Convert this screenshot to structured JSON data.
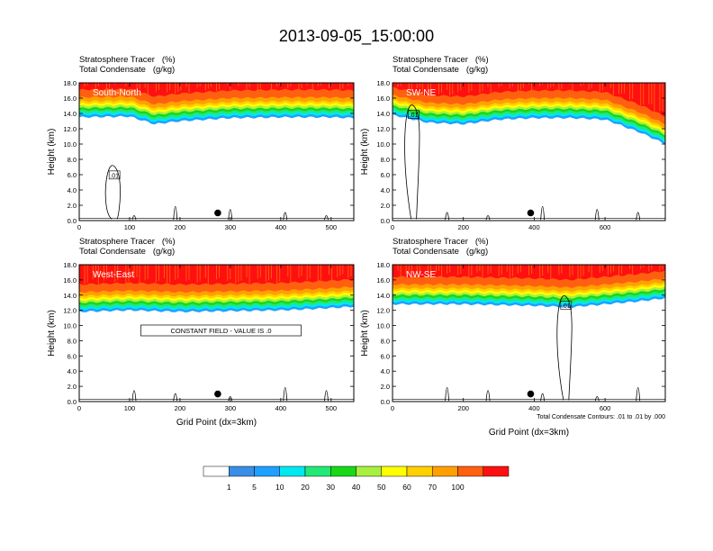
{
  "title": "2013-09-05_15:00:00",
  "panel_header_line1": "Stratosphere Tracer   (%)",
  "panel_header_line2": "Total Condensate   (g/kg)",
  "colorbar": {
    "levels": [
      "1",
      "5",
      "10",
      "20",
      "30",
      "40",
      "50",
      "60",
      "70",
      "100"
    ],
    "colors": [
      "#ffffff",
      "#3a8ee6",
      "#1ea0ff",
      "#00e8f0",
      "#22e878",
      "#18d818",
      "#a8f040",
      "#ffff00",
      "#ffd000",
      "#ffa000",
      "#ff6010",
      "#ff1010"
    ]
  },
  "chart_data": [
    {
      "type": "heatmap",
      "name": "South-North",
      "ylabel": "Height (km)",
      "xlabel": "",
      "xlim": [
        0,
        545
      ],
      "ylim": [
        0,
        18
      ],
      "xticks": [
        "0",
        "100",
        "200",
        "300",
        "400",
        "500"
      ],
      "yticks": [
        "0.0",
        "2.0",
        "4.0",
        "6.0",
        "8.0",
        "10.0",
        "12.0",
        "14.0",
        "16.0",
        "18.0"
      ],
      "contour_label": ".01",
      "marker": {
        "x": 275,
        "y": 1.0
      },
      "tropopause_x": [
        0,
        100,
        150,
        200,
        300,
        400,
        500,
        545
      ],
      "tropopause_km": [
        13.5,
        13.6,
        12.6,
        13.0,
        13.4,
        13.5,
        13.5,
        13.4
      ]
    },
    {
      "type": "heatmap",
      "name": "SW-NE",
      "ylabel": "Height (km)",
      "xlabel": "",
      "xlim": [
        0,
        770
      ],
      "ylim": [
        0,
        18
      ],
      "xticks": [
        "0",
        "200",
        "400",
        "600"
      ],
      "yticks": [
        "0.0",
        "2.0",
        "4.0",
        "6.0",
        "8.0",
        "10.0",
        "12.0",
        "14.0",
        "16.0",
        "18.0"
      ],
      "contour_label": ".01",
      "marker": {
        "x": 390,
        "y": 1.0
      },
      "tropopause_x": [
        0,
        100,
        200,
        300,
        400,
        500,
        600,
        700,
        770
      ],
      "tropopause_km": [
        13.8,
        12.8,
        12.6,
        13.2,
        13.4,
        13.4,
        13.2,
        11.5,
        10.0
      ]
    },
    {
      "type": "heatmap",
      "name": "West-East",
      "ylabel": "Height (km)",
      "xlabel": "Grid Point (dx=3km)",
      "xlim": [
        0,
        545
      ],
      "ylim": [
        0,
        18
      ],
      "xticks": [
        "0",
        "100",
        "200",
        "300",
        "400",
        "500"
      ],
      "yticks": [
        "0.0",
        "2.0",
        "4.0",
        "6.0",
        "8.0",
        "10.0",
        "12.0",
        "14.0",
        "16.0",
        "18.0"
      ],
      "annotation": "CONSTANT FIELD - VALUE IS .0",
      "marker": {
        "x": 275,
        "y": 1.0
      },
      "tropopause_x": [
        0,
        100,
        200,
        300,
        400,
        500,
        545
      ],
      "tropopause_km": [
        11.8,
        12.0,
        11.8,
        11.9,
        12.0,
        12.3,
        12.5
      ]
    },
    {
      "type": "heatmap",
      "name": "NW-SE",
      "ylabel": "Height (km)",
      "xlabel": "Grid Point (dx=3km)",
      "xlim": [
        0,
        770
      ],
      "ylim": [
        0,
        18
      ],
      "xticks": [
        "0",
        "200",
        "400",
        "600"
      ],
      "yticks": [
        "0.0",
        "2.0",
        "4.0",
        "6.0",
        "8.0",
        "10.0",
        "12.0",
        "14.0",
        "16.0",
        "18.0"
      ],
      "contour_label": ".01",
      "footnote": "Total Condensate Contours: .01 to .01 by .000",
      "marker": {
        "x": 390,
        "y": 1.0
      },
      "tropopause_x": [
        0,
        200,
        400,
        500,
        600,
        700,
        770
      ],
      "tropopause_km": [
        12.8,
        12.8,
        12.6,
        12.4,
        12.8,
        13.2,
        13.6
      ]
    }
  ]
}
